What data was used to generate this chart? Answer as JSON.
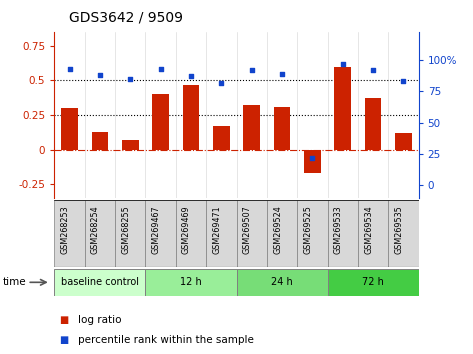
{
  "title": "GDS3642 / 9509",
  "samples": [
    "GSM268253",
    "GSM268254",
    "GSM268255",
    "GSM269467",
    "GSM269469",
    "GSM269471",
    "GSM269507",
    "GSM269524",
    "GSM269525",
    "GSM269533",
    "GSM269534",
    "GSM269535"
  ],
  "log_ratio": [
    0.3,
    0.13,
    0.07,
    0.4,
    0.47,
    0.17,
    0.32,
    0.31,
    -0.17,
    0.6,
    0.37,
    0.12
  ],
  "percentile_rank": [
    93,
    88,
    85,
    93,
    87,
    82,
    92,
    89,
    22,
    97,
    92,
    83
  ],
  "ylim_left": [
    -0.35,
    0.85
  ],
  "ylim_right": [
    -10.2,
    122.45
  ],
  "yticks_left": [
    -0.25,
    0.0,
    0.25,
    0.5,
    0.75
  ],
  "ytick_labels_left": [
    "-0.25",
    "0",
    "0.25",
    "0.5",
    "0.75"
  ],
  "yticks_right": [
    0,
    25,
    50,
    75,
    100
  ],
  "ytick_labels_right": [
    "0",
    "25",
    "50",
    "75",
    "100%"
  ],
  "hlines": [
    0.25,
    0.5
  ],
  "bar_color": "#cc2200",
  "dot_color": "#1144cc",
  "zero_line_color": "#cc2200",
  "groups": [
    {
      "label": "baseline control",
      "start": 0,
      "end": 3,
      "color": "#ccffcc"
    },
    {
      "label": "12 h",
      "start": 3,
      "end": 6,
      "color": "#99ee99"
    },
    {
      "label": "24 h",
      "start": 6,
      "end": 9,
      "color": "#77dd77"
    },
    {
      "label": "72 h",
      "start": 9,
      "end": 12,
      "color": "#44cc44"
    }
  ],
  "tick_color_left": "#cc2200",
  "tick_color_right": "#1144cc",
  "bar_width": 0.55,
  "title_fontsize": 10,
  "axis_fontsize": 7.5,
  "label_fontsize": 7.5,
  "group_label_fontsize": 8
}
